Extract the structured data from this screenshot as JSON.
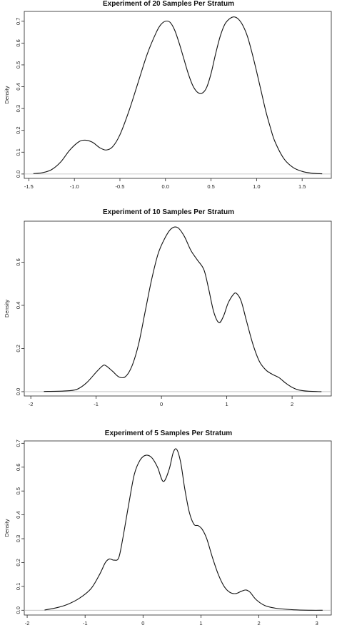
{
  "chart_data": [
    {
      "type": "line",
      "title": "Experiment of 20 Samples Per Stratum",
      "xlabel": "",
      "ylabel": "Density",
      "xlim": [
        -1.55,
        1.82
      ],
      "ylim": [
        -0.02,
        0.745
      ],
      "xticks": [
        -1.5,
        -1.0,
        -0.5,
        0.0,
        0.5,
        1.0,
        1.5
      ],
      "xtick_labels": [
        "-1.5",
        "-1.0",
        "-0.5",
        "0.0",
        "0.5",
        "1.0",
        "1.5"
      ],
      "yticks": [
        0.0,
        0.1,
        0.2,
        0.3,
        0.4,
        0.5,
        0.6,
        0.7
      ],
      "ytick_labels": [
        "0.0",
        "0.1",
        "0.2",
        "0.3",
        "0.4",
        "0.5",
        "0.6",
        "0.7"
      ],
      "baseline": 0,
      "series": [
        {
          "x": [
            -1.45,
            -1.35,
            -1.25,
            -1.15,
            -1.05,
            -0.95,
            -0.88,
            -0.8,
            -0.72,
            -0.65,
            -0.58,
            -0.5,
            -0.4,
            -0.3,
            -0.2,
            -0.1,
            -0.05,
            0.0,
            0.05,
            0.1,
            0.15,
            0.2,
            0.25,
            0.3,
            0.35,
            0.4,
            0.45,
            0.5,
            0.55,
            0.6,
            0.65,
            0.7,
            0.75,
            0.8,
            0.85,
            0.9,
            0.95,
            1.0,
            1.05,
            1.1,
            1.15,
            1.2,
            1.3,
            1.4,
            1.5,
            1.6,
            1.72
          ],
          "values": [
            0.002,
            0.006,
            0.02,
            0.055,
            0.11,
            0.148,
            0.155,
            0.145,
            0.12,
            0.11,
            0.125,
            0.18,
            0.29,
            0.42,
            0.55,
            0.65,
            0.685,
            0.7,
            0.695,
            0.66,
            0.6,
            0.53,
            0.46,
            0.405,
            0.375,
            0.37,
            0.395,
            0.46,
            0.55,
            0.63,
            0.685,
            0.71,
            0.72,
            0.71,
            0.68,
            0.63,
            0.555,
            0.47,
            0.38,
            0.29,
            0.215,
            0.15,
            0.07,
            0.03,
            0.012,
            0.004,
            0.001
          ]
        }
      ]
    },
    {
      "type": "line",
      "title": "Experiment of 10 Samples Per Stratum",
      "xlabel": "",
      "ylabel": "Density",
      "xlim": [
        -2.1,
        2.6
      ],
      "ylim": [
        -0.02,
        0.79
      ],
      "xticks": [
        -2,
        -1,
        0,
        1,
        2
      ],
      "xtick_labels": [
        "-2",
        "-1",
        "0",
        "1",
        "2"
      ],
      "yticks": [
        0.0,
        0.2,
        0.4,
        0.6
      ],
      "ytick_labels": [
        "0.0",
        "0.2",
        "0.4",
        "0.6"
      ],
      "baseline": 0,
      "series": [
        {
          "x": [
            -1.8,
            -1.5,
            -1.3,
            -1.15,
            -1.0,
            -0.9,
            -0.85,
            -0.75,
            -0.65,
            -0.55,
            -0.45,
            -0.35,
            -0.25,
            -0.15,
            -0.05,
            0.05,
            0.15,
            0.25,
            0.35,
            0.45,
            0.55,
            0.65,
            0.72,
            0.8,
            0.88,
            0.95,
            1.02,
            1.1,
            1.15,
            1.22,
            1.3,
            1.4,
            1.5,
            1.6,
            1.7,
            1.8,
            1.9,
            2.0,
            2.1,
            2.25,
            2.45
          ],
          "values": [
            0.001,
            0.003,
            0.01,
            0.04,
            0.09,
            0.12,
            0.12,
            0.095,
            0.068,
            0.07,
            0.12,
            0.22,
            0.37,
            0.52,
            0.64,
            0.71,
            0.755,
            0.76,
            0.72,
            0.655,
            0.61,
            0.565,
            0.48,
            0.37,
            0.32,
            0.35,
            0.41,
            0.45,
            0.455,
            0.42,
            0.33,
            0.22,
            0.14,
            0.1,
            0.08,
            0.065,
            0.04,
            0.02,
            0.008,
            0.002,
            0.0
          ]
        }
      ]
    },
    {
      "type": "line",
      "title": "Experiment of 5 Samples Per Stratum",
      "xlabel": "",
      "ylabel": "Density",
      "xlim": [
        -2.05,
        3.25
      ],
      "ylim": [
        -0.02,
        0.71
      ],
      "xticks": [
        -2,
        -1,
        0,
        1,
        2,
        3
      ],
      "xtick_labels": [
        "-2",
        "-1",
        "0",
        "1",
        "2",
        "3"
      ],
      "yticks": [
        0.0,
        0.1,
        0.2,
        0.3,
        0.4,
        0.5,
        0.6,
        0.7
      ],
      "ytick_labels": [
        "0.0",
        "0.1",
        "0.2",
        "0.3",
        "0.4",
        "0.5",
        "0.6",
        "0.7"
      ],
      "baseline": 0,
      "series": [
        {
          "x": [
            -1.7,
            -1.5,
            -1.3,
            -1.1,
            -0.9,
            -0.75,
            -0.65,
            -0.58,
            -0.5,
            -0.42,
            -0.35,
            -0.25,
            -0.15,
            -0.05,
            0.05,
            0.15,
            0.25,
            0.35,
            0.45,
            0.52,
            0.58,
            0.65,
            0.72,
            0.8,
            0.88,
            0.95,
            1.02,
            1.1,
            1.2,
            1.3,
            1.4,
            1.5,
            1.6,
            1.7,
            1.78,
            1.85,
            1.95,
            2.1,
            2.3,
            2.6,
            2.9,
            3.1
          ],
          "values": [
            0.001,
            0.01,
            0.025,
            0.05,
            0.09,
            0.15,
            0.2,
            0.215,
            0.21,
            0.22,
            0.3,
            0.44,
            0.57,
            0.63,
            0.65,
            0.64,
            0.6,
            0.54,
            0.59,
            0.66,
            0.675,
            0.62,
            0.51,
            0.41,
            0.36,
            0.355,
            0.34,
            0.3,
            0.22,
            0.15,
            0.1,
            0.075,
            0.07,
            0.08,
            0.085,
            0.075,
            0.045,
            0.02,
            0.008,
            0.002,
            0.0,
            0.0
          ]
        }
      ]
    }
  ]
}
